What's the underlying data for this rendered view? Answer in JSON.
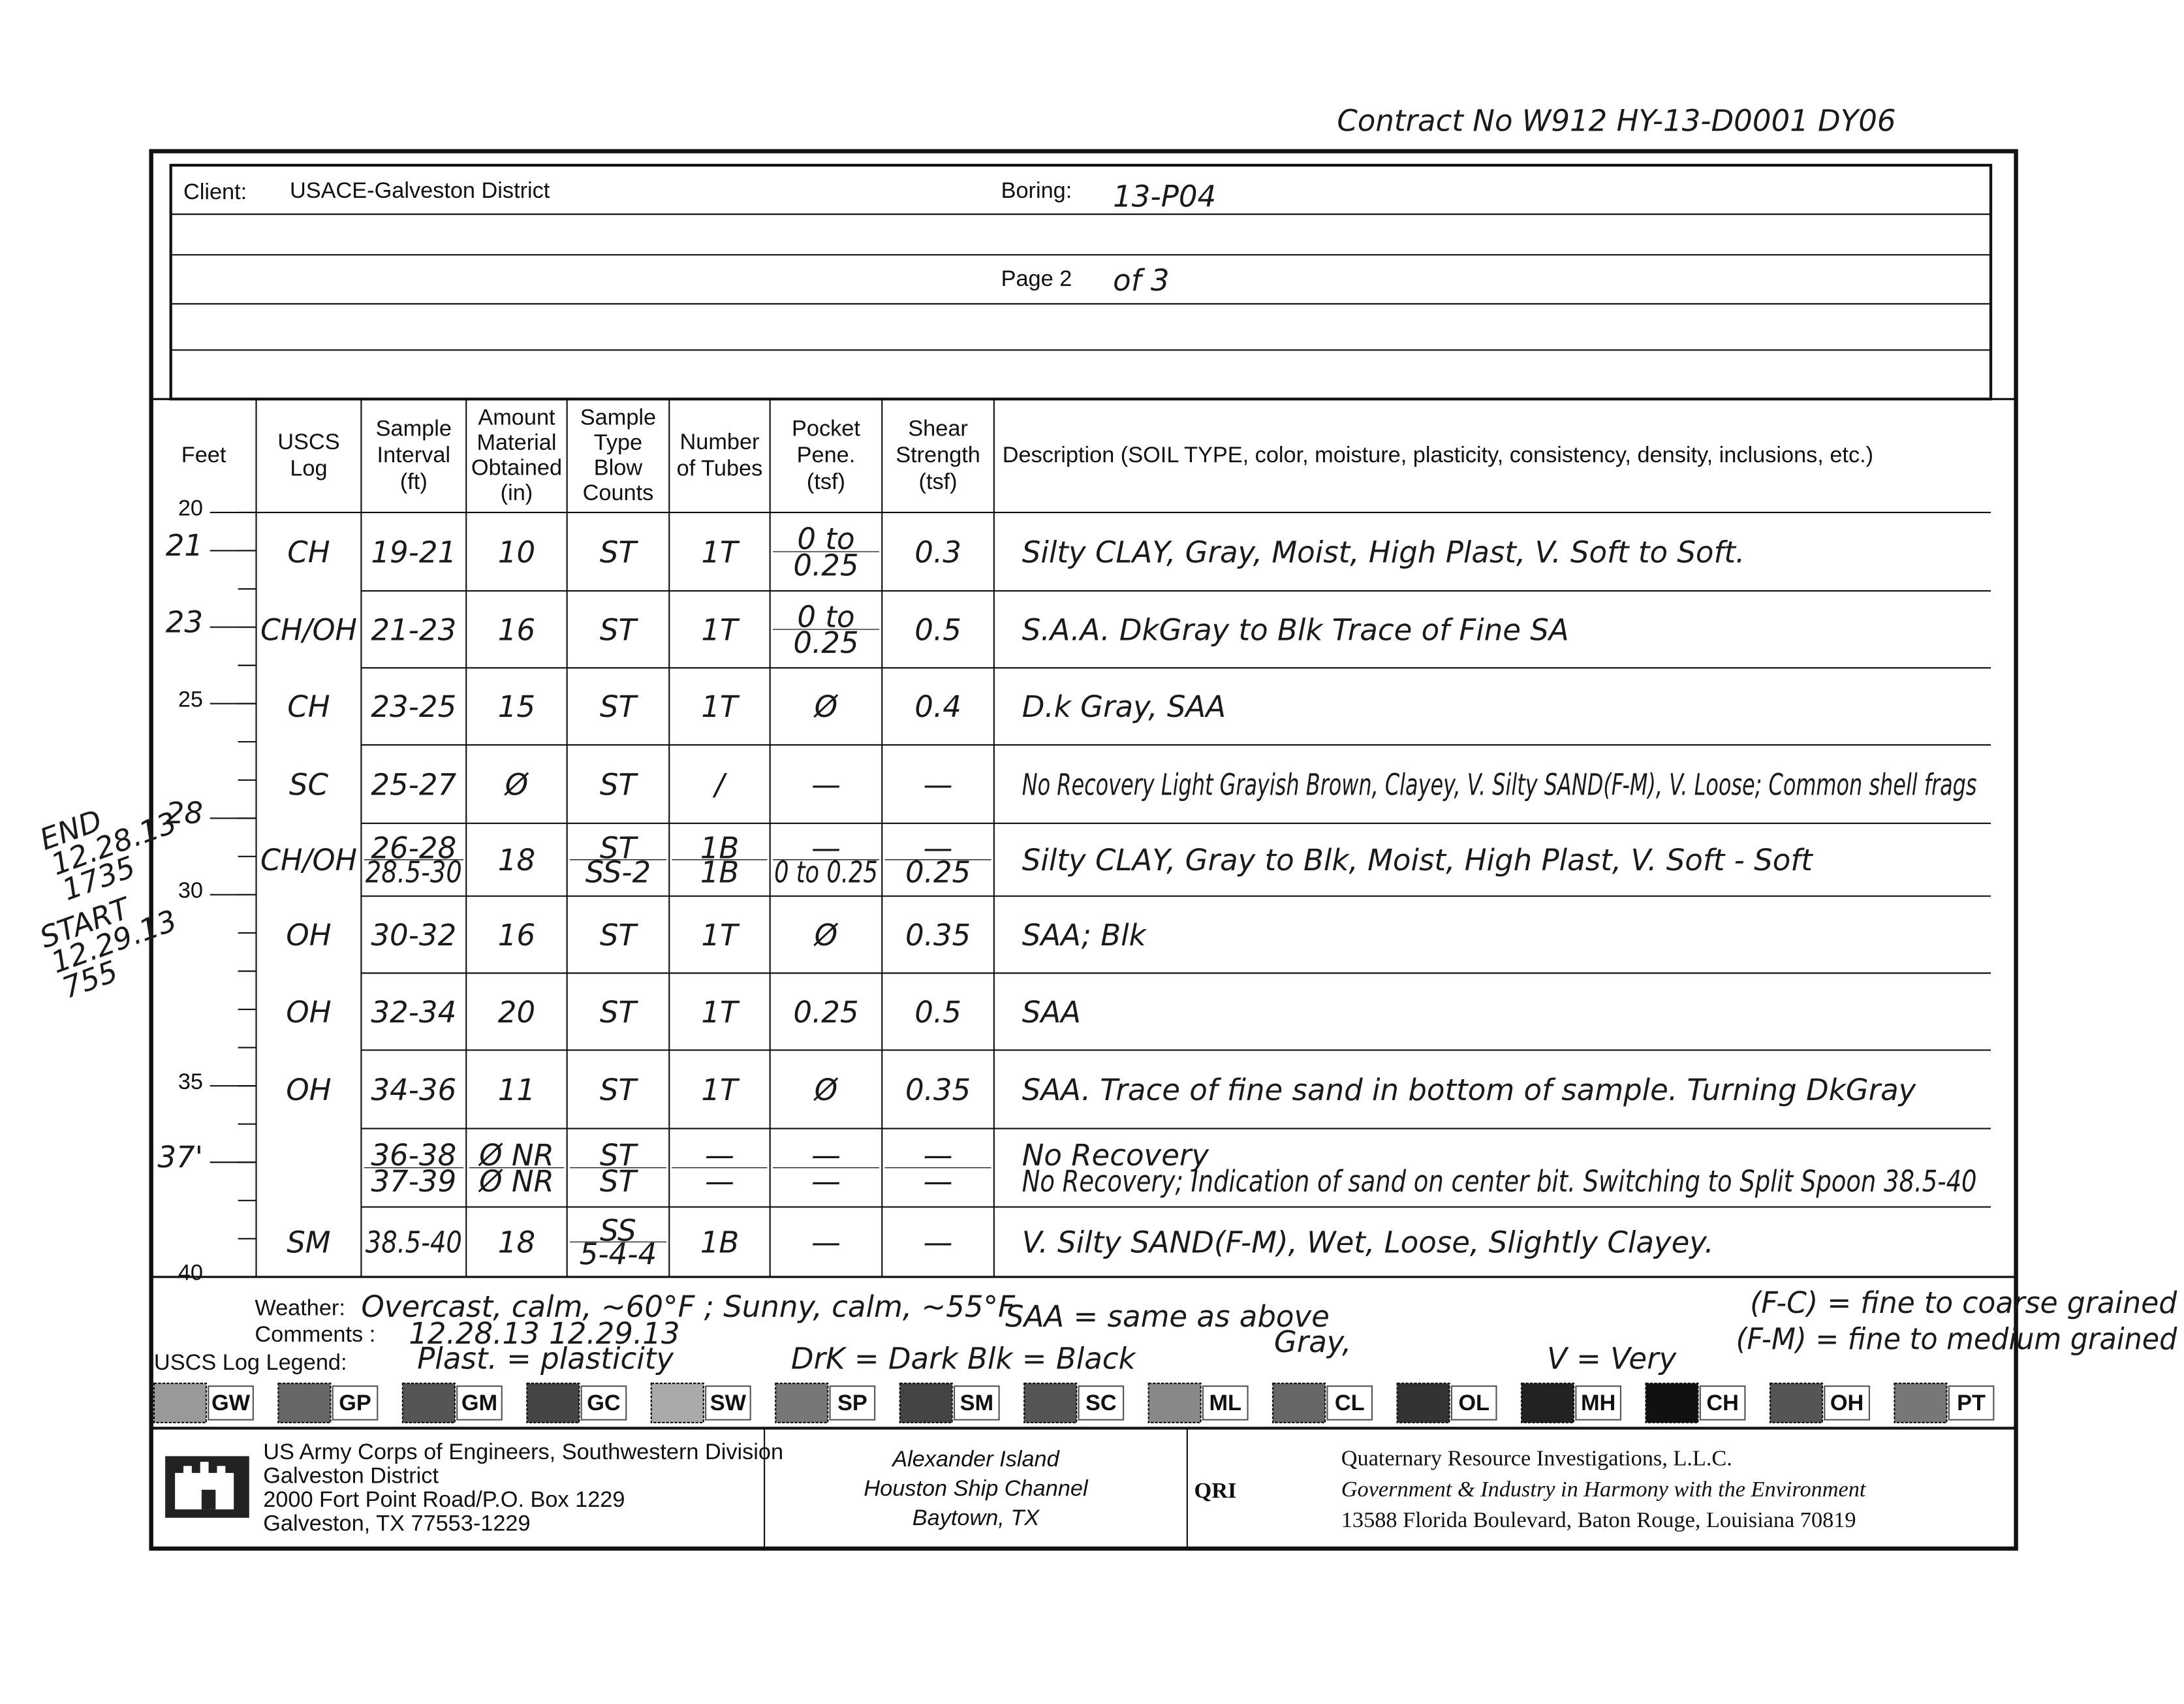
{
  "contract": "Contract No W912 HY-13-D0001 DY06",
  "header": {
    "client_label": "Client:",
    "client": "USACE-Galveston District",
    "boring_label": "Boring:",
    "boring": "13-P04",
    "page_label": "Page 2",
    "page_total": "of 3"
  },
  "table": {
    "columns": [
      [
        "Feet"
      ],
      [
        "USCS",
        "Log"
      ],
      [
        "Sample",
        "Interval",
        "(ft)"
      ],
      [
        "Amount",
        "Material",
        "Obtained",
        "(in)"
      ],
      [
        "Sample",
        "Type",
        "Blow",
        "Counts"
      ],
      [
        "Number",
        "of Tubes"
      ],
      [
        "Pocket",
        "Pene.",
        "(tsf)"
      ],
      [
        "Shear",
        "Strength",
        "(tsf)"
      ],
      [
        "Description (SOIL TYPE, color, moisture, plasticity, consistency, density, inclusions, etc.)"
      ]
    ],
    "depths": [
      20,
      21,
      23,
      25,
      28,
      30,
      35,
      {
        "value": 37,
        "label": "37'"
      },
      40
    ],
    "rows": [
      [
        "CH",
        "19-21",
        "10",
        "ST",
        "1T",
        [
          "0 to",
          "0.25"
        ],
        "0.3",
        "Silty CLAY, Gray, Moist, High Plast, V. Soft to Soft."
      ],
      [
        "CH/OH",
        "21-23",
        "16",
        "ST",
        "1T",
        [
          "0 to",
          "0.25"
        ],
        "0.5",
        "S.A.A. DkGray to Blk        Trace of Fine SA"
      ],
      [
        "CH",
        "23-25",
        "15",
        "ST",
        "1T",
        "Ø",
        "0.4",
        "D.k Gray, SAA"
      ],
      [
        "SC",
        "25-27",
        "Ø",
        "ST",
        "/",
        "—",
        "—",
        "No Recovery   Light Grayish Brown, Clayey, V. Silty SAND(F-M), V. Loose; Common shell frags"
      ],
      [
        "CH/OH",
        [
          "26-28",
          "28.5-30"
        ],
        "18",
        [
          "ST",
          "SS-2"
        ],
        [
          "1B",
          "1B"
        ],
        [
          "—",
          "0 to 0.25"
        ],
        [
          "—",
          "0.25"
        ],
        "Silty CLAY, Gray to Blk, Moist, High Plast, V. Soft - Soft"
      ],
      [
        "OH",
        "30-32",
        "16",
        "ST",
        "1T",
        "Ø",
        "0.35",
        "SAA; Blk"
      ],
      [
        "OH",
        "32-34",
        "20",
        "ST",
        "1T",
        "0.25",
        "0.5",
        "SAA"
      ],
      [
        "OH",
        "34-36",
        "11",
        "ST",
        "1T",
        "Ø",
        "0.35",
        "SAA. Trace of fine sand in bottom of sample. Turning DkGray"
      ],
      [
        null,
        [
          "36-38",
          "37-39"
        ],
        [
          "Ø NR",
          "Ø NR"
        ],
        [
          "ST",
          "ST"
        ],
        [
          "—",
          "—"
        ],
        [
          "—",
          "—"
        ],
        [
          "—",
          "—"
        ],
        [
          "No Recovery",
          "No Recovery; Indication of sand on center bit. Switching to Split Spoon 38.5-40"
        ]
      ],
      [
        "SM",
        "38.5-40",
        "18",
        [
          "SS",
          "5-4-4"
        ],
        "1B",
        "—",
        "—",
        "V. Silty SAND(F-M), Wet, Loose, Slightly Clayey."
      ]
    ]
  },
  "margin_notes": [
    [
      "END",
      "12.28.13",
      "1735"
    ],
    [
      "START",
      "12.29.13",
      "755"
    ]
  ],
  "footer_notes": {
    "weather_label": "Weather:",
    "weather": "Overcast, calm, ~60°F ; Sunny, calm, ~55°F",
    "comments_label": "Comments :",
    "comments": "12.28.13     12.29.13",
    "legend_label": "USCS Log Legend:",
    "notes": [
      "Plast. = plasticity",
      "DrK = Dark  Blk = Black",
      "SAA = same as above",
      "Gray,",
      "V = Very",
      "(F-C) = fine to coarse grained",
      "(F-M) = fine to medium grained"
    ]
  },
  "legend": [
    "GW",
    "GP",
    "GM",
    "GC",
    "SW",
    "SP",
    "SM",
    "SC",
    "ML",
    "CL",
    "OL",
    "MH",
    "CH",
    "OH",
    "PT"
  ],
  "footer": {
    "usace": [
      "US Army Corps of Engineers, Southwestern Division",
      "Galveston District",
      "2000 Fort Point Road/P.O. Box 1229",
      "Galveston, TX  77553-1229"
    ],
    "location": [
      "Alexander Island",
      "Houston Ship Channel",
      "Baytown, TX"
    ],
    "qri_logo": "QRI",
    "qri": [
      "Quaternary Resource Investigations, L.L.C.",
      "Government & Industry in Harmony with the Environment",
      "13588 Florida Boulevard, Baton Rouge, Louisiana 70819"
    ]
  }
}
